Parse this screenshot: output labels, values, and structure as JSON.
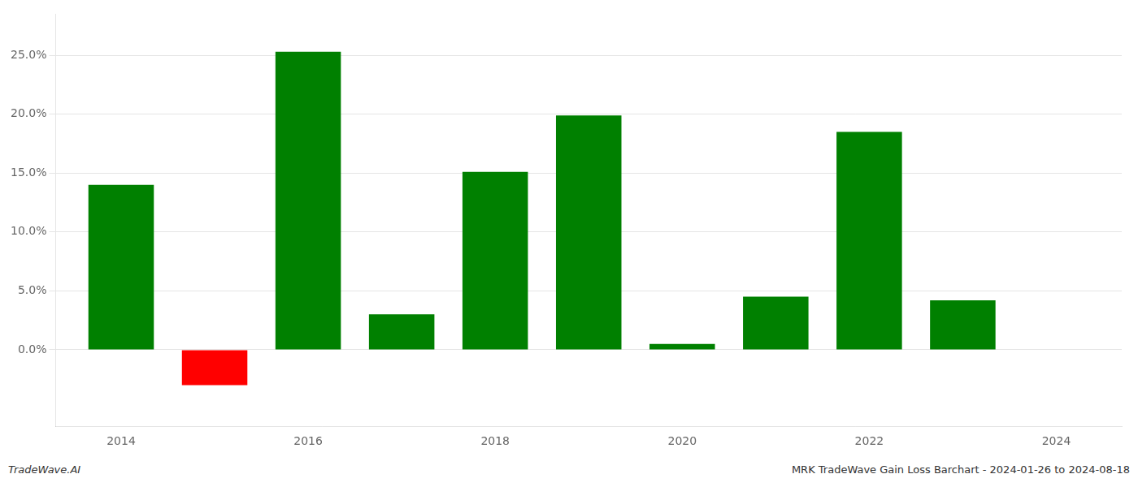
{
  "chart_data": {
    "type": "bar",
    "x": [
      2014,
      2015,
      2016,
      2017,
      2018,
      2019,
      2020,
      2021,
      2022,
      2023
    ],
    "values": [
      0.14,
      -0.03,
      0.253,
      0.03,
      0.151,
      0.199,
      0.005,
      0.045,
      0.185,
      0.042
    ],
    "colors": [
      "#008000",
      "#ff0000",
      "#008000",
      "#008000",
      "#008000",
      "#008000",
      "#008000",
      "#008000",
      "#008000",
      "#008000"
    ],
    "xlim": [
      2013.3,
      2024.7
    ],
    "xticks": [
      2014,
      2016,
      2018,
      2020,
      2022,
      2024
    ],
    "ylim": [
      -0.065,
      0.285
    ],
    "yticks": [
      {
        "value": 0.0,
        "label": "0.0%"
      },
      {
        "value": 0.05,
        "label": "5.0%"
      },
      {
        "value": 0.1,
        "label": "10.0%"
      },
      {
        "value": 0.15,
        "label": "15.0%"
      },
      {
        "value": 0.2,
        "label": "20.0%"
      },
      {
        "value": 0.25,
        "label": "25.0%"
      }
    ],
    "grid": true,
    "annotations": [
      "TradeWave.AI",
      "MRK TradeWave Gain Loss Barchart - 2024-01-26 to 2024-08-18"
    ]
  }
}
